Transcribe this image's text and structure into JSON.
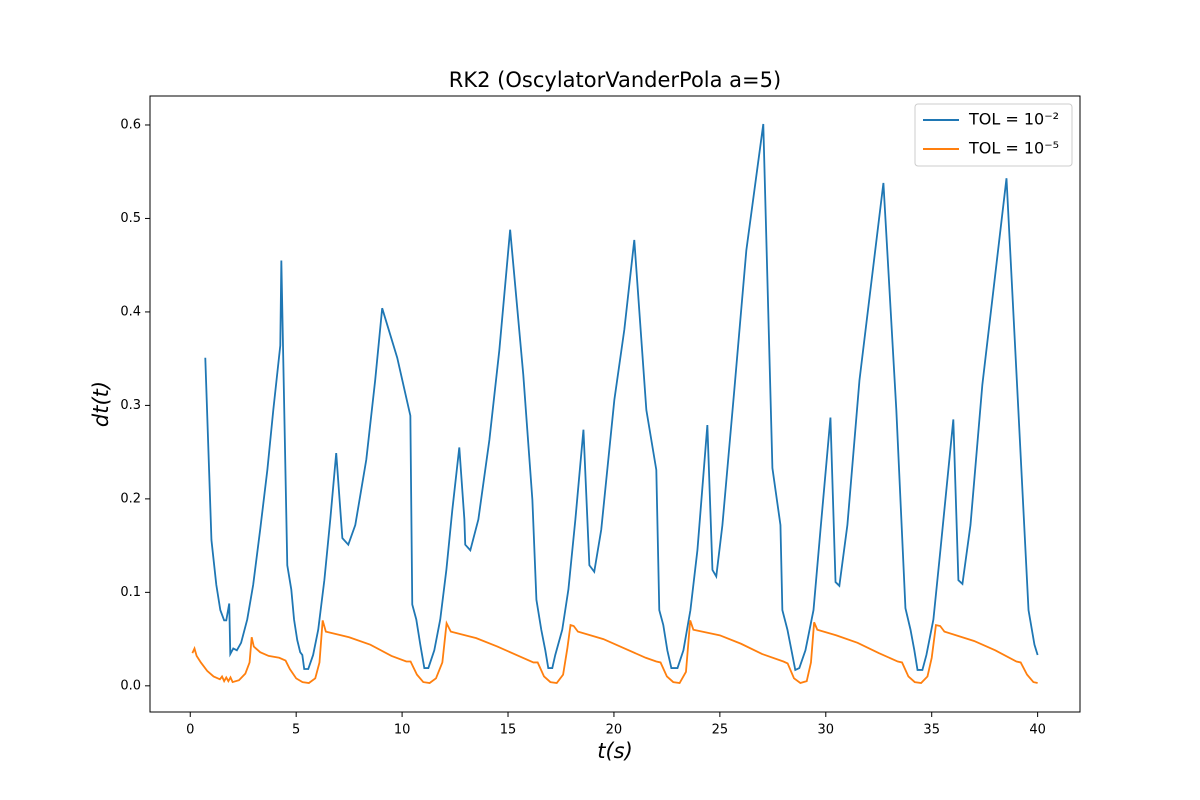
{
  "chart_data": {
    "type": "line",
    "title": "RK2 (OscylatorVanderPola a=5)",
    "x_label": "t(s)",
    "y_label": "dt(t)",
    "xlim": [
      -1.9,
      42
    ],
    "ylim": [
      -0.028,
      0.631
    ],
    "xticks": [
      0,
      5,
      10,
      15,
      20,
      25,
      30,
      35,
      40
    ],
    "yticks": [
      {
        "value": 0,
        "label": "0.0"
      },
      0.1,
      0.2,
      0.3,
      0.4,
      0.5,
      0.6
    ],
    "legend": "upper right",
    "series": [
      {
        "name": "TOL = 10⁻²",
        "color": "#1f77b4",
        "x": [
          0.71,
          1.0,
          1.23,
          1.42,
          1.6,
          1.7,
          1.84,
          1.89,
          2.03,
          2.2,
          2.4,
          2.69,
          2.97,
          3.3,
          3.64,
          3.92,
          4.25,
          4.3,
          4.58,
          4.77,
          4.9,
          5.05,
          5.19,
          5.29,
          5.38,
          5.57,
          5.8,
          6.04,
          6.33,
          6.61,
          6.89,
          7.18,
          7.46,
          7.79,
          8.31,
          8.73,
          9.06,
          9.77,
          10.39,
          10.48,
          10.67,
          10.86,
          11.05,
          11.24,
          11.52,
          11.8,
          12.09,
          12.37,
          12.7,
          12.94,
          12.98,
          13.22,
          13.6,
          14.12,
          14.59,
          15.1,
          15.72,
          16.15,
          16.34,
          16.57,
          16.76,
          16.9,
          17.09,
          17.23,
          17.56,
          17.85,
          18.18,
          18.56,
          18.84,
          19.07,
          19.4,
          20.02,
          20.49,
          20.96,
          21.53,
          22.0,
          22.14,
          22.33,
          22.52,
          22.71,
          23.0,
          23.28,
          23.61,
          23.94,
          24.41,
          24.65,
          24.83,
          25.12,
          25.68,
          26.25,
          27.05,
          27.48,
          27.86,
          27.95,
          28.19,
          28.38,
          28.56,
          28.75,
          29.04,
          29.42,
          29.75,
          30.22,
          30.46,
          30.64,
          31.02,
          31.59,
          32.72,
          33.33,
          33.76,
          34.0,
          34.18,
          34.33,
          34.56,
          34.75,
          35.08,
          35.41,
          36.02,
          36.26,
          36.45,
          36.83,
          37.39,
          38.53,
          39.09,
          39.57,
          39.85,
          40.0
        ],
        "values": [
          0.351,
          0.156,
          0.108,
          0.081,
          0.07,
          0.07,
          0.088,
          0.034,
          0.04,
          0.038,
          0.046,
          0.071,
          0.108,
          0.167,
          0.231,
          0.295,
          0.364,
          0.455,
          0.129,
          0.103,
          0.071,
          0.049,
          0.036,
          0.033,
          0.018,
          0.018,
          0.033,
          0.06,
          0.113,
          0.178,
          0.249,
          0.158,
          0.151,
          0.172,
          0.242,
          0.327,
          0.404,
          0.351,
          0.289,
          0.087,
          0.071,
          0.044,
          0.019,
          0.019,
          0.038,
          0.071,
          0.124,
          0.188,
          0.255,
          0.178,
          0.151,
          0.145,
          0.178,
          0.263,
          0.359,
          0.488,
          0.333,
          0.199,
          0.092,
          0.06,
          0.038,
          0.019,
          0.019,
          0.033,
          0.06,
          0.103,
          0.178,
          0.274,
          0.129,
          0.122,
          0.167,
          0.306,
          0.381,
          0.477,
          0.295,
          0.231,
          0.081,
          0.065,
          0.038,
          0.019,
          0.019,
          0.038,
          0.081,
          0.145,
          0.279,
          0.124,
          0.117,
          0.172,
          0.316,
          0.466,
          0.601,
          0.233,
          0.172,
          0.081,
          0.06,
          0.038,
          0.017,
          0.019,
          0.038,
          0.081,
          0.167,
          0.287,
          0.111,
          0.107,
          0.172,
          0.327,
          0.538,
          0.295,
          0.083,
          0.06,
          0.038,
          0.017,
          0.017,
          0.033,
          0.071,
          0.145,
          0.285,
          0.113,
          0.109,
          0.172,
          0.322,
          0.543,
          0.295,
          0.081,
          0.044,
          0.033
        ]
      },
      {
        "name": "TOL = 10⁻⁵",
        "color": "#ff7f0e",
        "x": [
          0.1,
          0.2,
          0.3,
          0.5,
          0.8,
          1.1,
          1.4,
          1.5,
          1.6,
          1.7,
          1.8,
          1.9,
          2.0,
          2.3,
          2.6,
          2.8,
          2.9,
          3.0,
          3.3,
          3.7,
          4.2,
          4.5,
          4.7,
          5.0,
          5.3,
          5.6,
          5.9,
          6.1,
          6.25,
          6.4,
          7.5,
          8.5,
          9.5,
          10.2,
          10.4,
          10.7,
          11.0,
          11.3,
          11.6,
          11.9,
          12.1,
          12.3,
          13.5,
          14.5,
          15.5,
          16.2,
          16.4,
          16.7,
          17.0,
          17.3,
          17.6,
          17.8,
          17.95,
          18.1,
          18.3,
          19.5,
          20.5,
          21.5,
          22.0,
          22.2,
          22.5,
          22.8,
          23.1,
          23.4,
          23.6,
          23.75,
          25,
          26,
          27,
          28,
          28.2,
          28.5,
          28.8,
          29.1,
          29.3,
          29.45,
          29.6,
          30.5,
          31.5,
          32.5,
          33.4,
          33.6,
          33.9,
          34.2,
          34.5,
          34.8,
          35.0,
          35.2,
          35.4,
          35.6,
          37,
          38,
          39.0,
          39.2,
          39.5,
          39.8,
          40.0
        ],
        "values": [
          0.035,
          0.04,
          0.032,
          0.025,
          0.016,
          0.01,
          0.007,
          0.01,
          0.005,
          0.009,
          0.005,
          0.009,
          0.004,
          0.006,
          0.013,
          0.025,
          0.052,
          0.042,
          0.036,
          0.032,
          0.03,
          0.027,
          0.018,
          0.008,
          0.004,
          0.003,
          0.008,
          0.025,
          0.07,
          0.058,
          0.052,
          0.044,
          0.032,
          0.026,
          0.026,
          0.012,
          0.004,
          0.003,
          0.008,
          0.025,
          0.067,
          0.058,
          0.051,
          0.042,
          0.032,
          0.025,
          0.025,
          0.01,
          0.004,
          0.003,
          0.012,
          0.04,
          0.065,
          0.064,
          0.058,
          0.05,
          0.04,
          0.03,
          0.026,
          0.025,
          0.01,
          0.004,
          0.003,
          0.015,
          0.07,
          0.06,
          0.054,
          0.045,
          0.034,
          0.026,
          0.024,
          0.008,
          0.003,
          0.005,
          0.025,
          0.068,
          0.06,
          0.054,
          0.046,
          0.035,
          0.026,
          0.025,
          0.01,
          0.004,
          0.003,
          0.01,
          0.03,
          0.065,
          0.064,
          0.058,
          0.048,
          0.038,
          0.026,
          0.025,
          0.012,
          0.004,
          0.003
        ]
      }
    ]
  }
}
